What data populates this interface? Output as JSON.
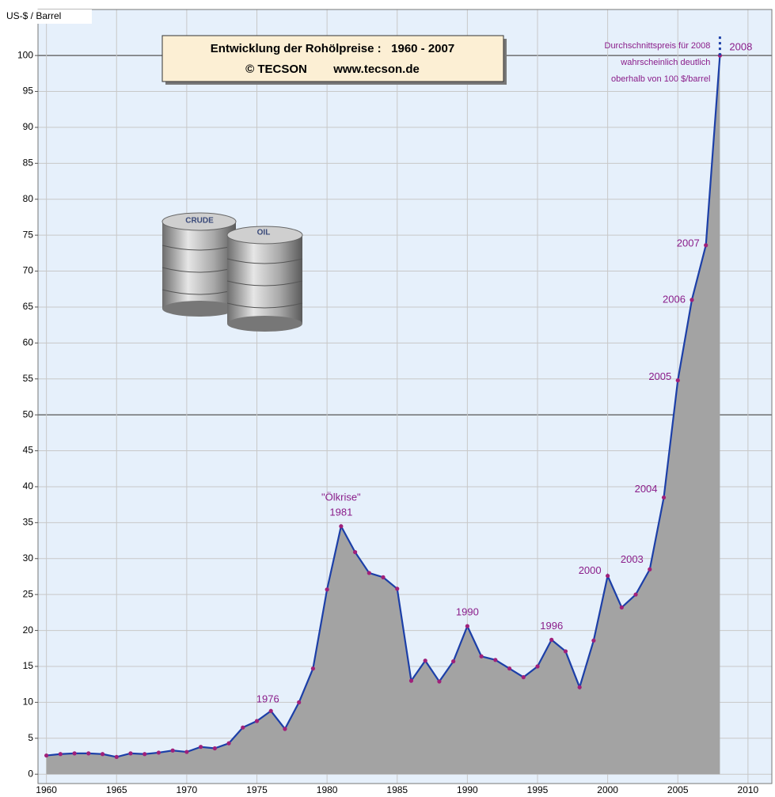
{
  "chart_data": {
    "type": "area",
    "title": "Entwicklung der Rohölpreise :   1960 - 2007",
    "subtitle": "© TECSON        www.tecson.de",
    "y_label": "US-$ / Barrel",
    "image_labels": [
      "CRUDE",
      "OIL"
    ],
    "x": [
      1960,
      1961,
      1962,
      1963,
      1964,
      1965,
      1966,
      1967,
      1968,
      1969,
      1970,
      1971,
      1972,
      1973,
      1974,
      1975,
      1976,
      1977,
      1978,
      1979,
      1980,
      1981,
      1982,
      1983,
      1984,
      1985,
      1986,
      1987,
      1988,
      1989,
      1990,
      1991,
      1992,
      1993,
      1994,
      1995,
      1996,
      1997,
      1998,
      1999,
      2000,
      2001,
      2002,
      2003,
      2004,
      2005,
      2006,
      2007,
      2008
    ],
    "values": [
      2.6,
      2.8,
      2.9,
      2.9,
      2.8,
      2.4,
      2.9,
      2.8,
      3.0,
      3.3,
      3.1,
      3.8,
      3.6,
      4.3,
      6.5,
      7.4,
      8.8,
      6.3,
      10.0,
      14.7,
      25.7,
      34.5,
      30.9,
      28.0,
      27.4,
      25.8,
      13.0,
      15.8,
      12.9,
      15.7,
      20.6,
      16.4,
      15.9,
      14.7,
      13.5,
      15.0,
      18.7,
      17.1,
      12.1,
      18.6,
      27.6,
      23.2,
      25.0,
      28.5,
      38.5,
      54.8,
      66.0,
      73.6,
      100
    ],
    "line_color": "#1c3fa8",
    "fill_color": "#a3a3a3",
    "marker_color": "#a0207a",
    "background": "#e6f0fb",
    "annotations": [
      {
        "text": "1976",
        "x": 1976
      },
      {
        "text": "\"Ölkrise\"",
        "x": 1981
      },
      {
        "text": "1981",
        "x": 1981
      },
      {
        "text": "1990",
        "x": 1990
      },
      {
        "text": "1996",
        "x": 1996
      },
      {
        "text": "2000",
        "x": 2000
      },
      {
        "text": "2003",
        "x": 2003
      },
      {
        "text": "2004",
        "x": 2004
      },
      {
        "text": "2005",
        "x": 2005
      },
      {
        "text": "2006",
        "x": 2006
      },
      {
        "text": "2007",
        "x": 2007
      },
      {
        "text": "2008",
        "x": 2008
      }
    ],
    "note": [
      "Durchschnittspreis für 2008",
      "wahrscheinlich deutlich",
      "oberhalb von 100 $/barrel"
    ],
    "xlim": [
      1959.4,
      2011.7
    ],
    "ylim": [
      -1.3,
      106.4
    ],
    "xticks": [
      1960,
      1965,
      1970,
      1975,
      1980,
      1985,
      1990,
      1995,
      2000,
      2005,
      2010
    ],
    "yticks": [
      0,
      5,
      10,
      15,
      20,
      25,
      30,
      35,
      40,
      45,
      50,
      55,
      60,
      65,
      70,
      75,
      80,
      85,
      90,
      95,
      100
    ],
    "strong_gridlines": [
      50,
      100
    ],
    "grid": true
  }
}
